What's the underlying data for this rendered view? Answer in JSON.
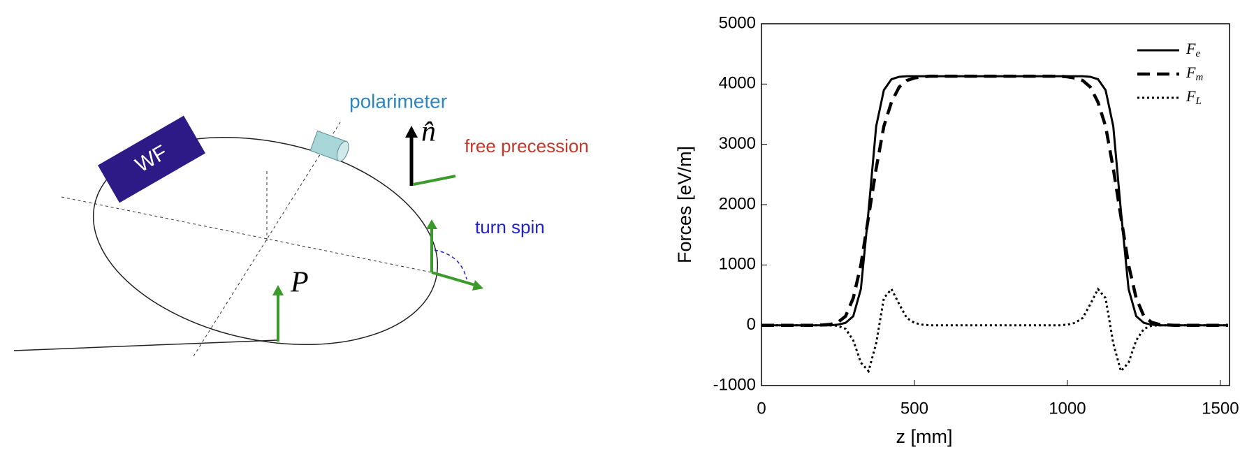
{
  "diagram": {
    "box_label": "WF",
    "instrument_label": "polarimeter",
    "normal_label": "n̂",
    "precession_label": "free precession",
    "turn_label": "turn spin",
    "polarization_label": "P⃗"
  },
  "chart_data": {
    "type": "line",
    "xlabel": "z [mm]",
    "ylabel": "Forces [eV/m]",
    "xlim": [
      0,
      1530
    ],
    "ylim": [
      -1000,
      5000
    ],
    "xticks": [
      0,
      500,
      1000,
      1500
    ],
    "yticks": [
      -1000,
      0,
      1000,
      2000,
      3000,
      4000,
      5000
    ],
    "legend": "upper right",
    "x": [
      0,
      25,
      50,
      75,
      100,
      125,
      150,
      175,
      200,
      225,
      250,
      275,
      300,
      325,
      350,
      375,
      400,
      425,
      450,
      475,
      500,
      525,
      550,
      575,
      600,
      625,
      650,
      675,
      700,
      725,
      750,
      775,
      800,
      825,
      850,
      875,
      900,
      925,
      950,
      975,
      1000,
      1025,
      1050,
      1075,
      1100,
      1125,
      1150,
      1175,
      1200,
      1225,
      1250,
      1275,
      1300,
      1325,
      1350,
      1375,
      1400,
      1425,
      1450,
      1475,
      1500,
      1525
    ],
    "series": [
      {
        "name": "Fe",
        "color": "#000000",
        "style": "solid",
        "values": [
          0,
          0,
          0,
          0,
          0,
          0,
          0,
          0,
          0,
          0,
          10,
          40,
          150,
          600,
          1900,
          3300,
          3900,
          4080,
          4120,
          4130,
          4130,
          4130,
          4130,
          4130,
          4130,
          4130,
          4130,
          4130,
          4130,
          4130,
          4130,
          4130,
          4130,
          4130,
          4130,
          4130,
          4130,
          4130,
          4130,
          4130,
          4130,
          4130,
          4130,
          4120,
          4080,
          3900,
          3300,
          1900,
          600,
          150,
          40,
          10,
          0,
          0,
          0,
          0,
          0,
          0,
          0,
          0,
          0,
          0
        ]
      },
      {
        "name": "Fm",
        "color": "#000000",
        "style": "dashed",
        "values": [
          0,
          0,
          0,
          0,
          0,
          0,
          0,
          0,
          5,
          15,
          50,
          150,
          450,
          1000,
          1800,
          2600,
          3300,
          3700,
          3950,
          4060,
          4100,
          4120,
          4130,
          4130,
          4130,
          4130,
          4130,
          4130,
          4130,
          4130,
          4130,
          4130,
          4130,
          4130,
          4130,
          4130,
          4130,
          4130,
          4130,
          4130,
          4120,
          4100,
          4060,
          3950,
          3700,
          3300,
          2600,
          1800,
          1000,
          450,
          150,
          50,
          15,
          5,
          0,
          0,
          0,
          0,
          0,
          0,
          0,
          0
        ]
      },
      {
        "name": "FL",
        "color": "#000000",
        "style": "dotted",
        "values": [
          0,
          0,
          0,
          0,
          0,
          0,
          0,
          0,
          0,
          0,
          -10,
          -60,
          -250,
          -620,
          -760,
          -300,
          450,
          600,
          350,
          120,
          40,
          10,
          0,
          0,
          0,
          0,
          0,
          0,
          0,
          0,
          0,
          0,
          0,
          0,
          0,
          0,
          0,
          0,
          0,
          0,
          10,
          40,
          120,
          350,
          600,
          450,
          -300,
          -760,
          -620,
          -250,
          -60,
          -10,
          0,
          0,
          0,
          0,
          0,
          0,
          0,
          0,
          0,
          0
        ]
      }
    ]
  }
}
